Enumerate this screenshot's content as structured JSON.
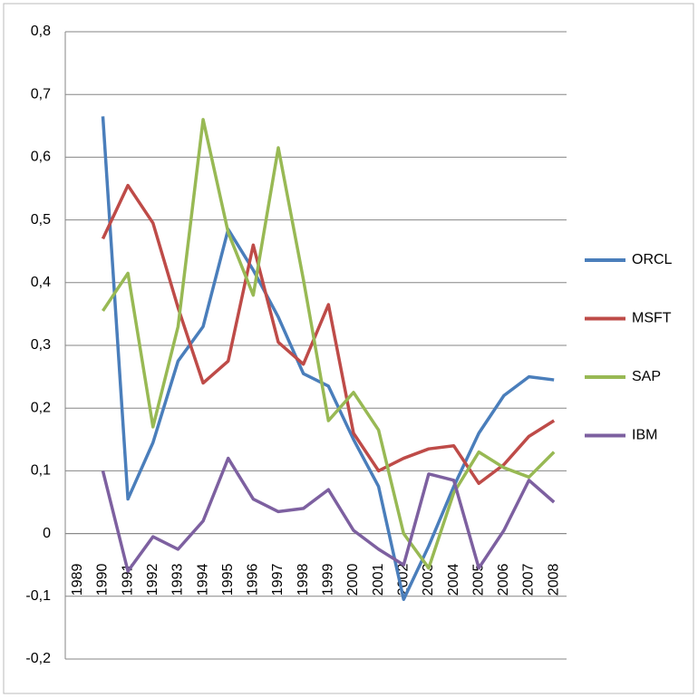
{
  "chart_data": {
    "type": "line",
    "categories": [
      "1989",
      "1990",
      "1991",
      "1992",
      "1993",
      "1994",
      "1995",
      "1996",
      "1997",
      "1998",
      "1999",
      "2000",
      "2001",
      "2002",
      "2003",
      "2004",
      "2005",
      "2006",
      "2007",
      "2008"
    ],
    "series": [
      {
        "name": "ORCL",
        "color": "#4a7ebb",
        "values": [
          null,
          0.665,
          0.055,
          0.145,
          0.275,
          0.33,
          0.485,
          0.42,
          0.345,
          0.255,
          0.235,
          0.15,
          0.075,
          -0.105,
          -0.02,
          0.075,
          0.16,
          0.22,
          0.25,
          0.245
        ]
      },
      {
        "name": "MSFT",
        "color": "#be4b48",
        "values": [
          null,
          0.47,
          0.555,
          0.495,
          0.36,
          0.24,
          0.275,
          0.46,
          0.305,
          0.27,
          0.365,
          0.16,
          0.1,
          0.12,
          0.135,
          0.14,
          0.08,
          0.11,
          0.155,
          0.18
        ]
      },
      {
        "name": "SAP",
        "color": "#98b954",
        "values": [
          null,
          0.355,
          0.415,
          0.17,
          0.33,
          0.66,
          0.48,
          0.38,
          0.615,
          0.405,
          0.18,
          0.225,
          0.165,
          0.0,
          -0.055,
          0.065,
          0.13,
          0.105,
          0.09,
          0.13
        ]
      },
      {
        "name": "IBM",
        "color": "#7d60a0",
        "values": [
          null,
          0.1,
          -0.06,
          -0.005,
          -0.025,
          0.02,
          0.12,
          0.055,
          0.035,
          0.04,
          0.07,
          0.005,
          -0.025,
          -0.05,
          0.095,
          0.085,
          -0.055,
          0.005,
          0.085,
          0.05
        ]
      }
    ],
    "ylim": [
      -0.2,
      0.8
    ],
    "yticks": [
      {
        "value": -0.2,
        "label": "-0,2"
      },
      {
        "value": -0.1,
        "label": "-0,1"
      },
      0,
      {
        "value": 0.1,
        "label": "0,1"
      },
      {
        "value": 0.2,
        "label": "0,2"
      },
      {
        "value": 0.3,
        "label": "0,3"
      },
      {
        "value": 0.4,
        "label": "0,4"
      },
      {
        "value": 0.5,
        "label": "0,5"
      },
      {
        "value": 0.6,
        "label": "0,6"
      },
      {
        "value": 0.7,
        "label": "0,7"
      },
      {
        "value": 0.8,
        "label": "0,8"
      }
    ],
    "grid": true,
    "legend": "right"
  }
}
